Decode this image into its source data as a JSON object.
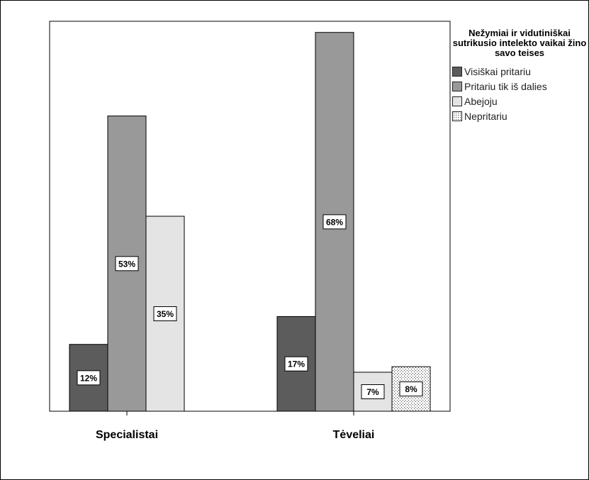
{
  "chart_data": {
    "type": "bar",
    "categories": [
      "Specialistai",
      "Tėveliai"
    ],
    "legend_title": "Nežymiai ir vidutiniškai sutrikusio intelekto vaikai žino savo teises",
    "series": [
      {
        "name": "Visiškai pritariu",
        "color": "#5c5c5c",
        "pattern": "solid",
        "values": [
          12,
          17
        ],
        "labels": [
          "12%",
          "17%"
        ]
      },
      {
        "name": "Pritariu tik iš dalies",
        "color": "#999999",
        "pattern": "solid",
        "values": [
          53,
          68
        ],
        "labels": [
          "53%",
          "68%"
        ]
      },
      {
        "name": "Abejoju",
        "color": "#e4e4e4",
        "pattern": "solid",
        "values": [
          35,
          7
        ],
        "labels": [
          "35%",
          "7%"
        ]
      },
      {
        "name": "Nepritariu",
        "color": "#ffffff",
        "pattern": "dots",
        "values": [
          null,
          8
        ],
        "labels": [
          null,
          "8%"
        ]
      }
    ],
    "ylim": [
      0,
      70
    ],
    "grid": false,
    "legend_position": "top-right"
  }
}
